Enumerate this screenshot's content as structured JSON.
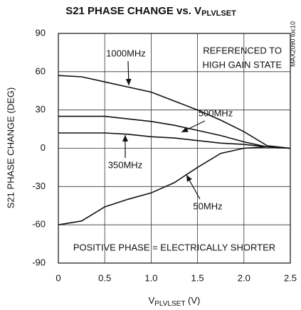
{
  "chart_data": {
    "type": "line",
    "title": "S21 PHASE CHANGE vs. V",
    "title_subscript": "PLVLSET",
    "xlabel": "V",
    "xlabel_subscript": "PLVLSET",
    "xlabel_unit": " (V)",
    "ylabel": "S21 PHASE CHANGE (DEG)",
    "x": [
      0,
      0.25,
      0.5,
      0.75,
      1,
      1.25,
      1.5,
      1.75,
      2,
      2.25,
      2.5
    ],
    "series": [
      {
        "name": "1000MHz",
        "color": "#111111",
        "values": [
          57,
          56,
          52,
          48,
          44,
          37,
          30,
          22,
          13,
          2,
          0
        ]
      },
      {
        "name": "500MHz",
        "color": "#111111",
        "values": [
          25,
          25,
          25,
          23,
          21,
          18,
          14,
          10,
          5,
          1,
          0
        ]
      },
      {
        "name": "350MHz",
        "color": "#111111",
        "values": [
          12,
          12,
          12,
          11,
          9,
          8,
          6,
          4,
          3,
          1,
          0
        ]
      },
      {
        "name": "50MHz",
        "color": "#111111",
        "values": [
          -60,
          -57,
          -46,
          -40,
          -35,
          -27,
          -15,
          -4,
          0,
          1,
          0
        ]
      }
    ],
    "annotations": [
      "REFERENCED TO",
      "HIGH GAIN STATE",
      "POSITIVE PHASE = ELECTRICALLY SHORTER"
    ],
    "side_note": "MAX2090 toc10",
    "xlim": [
      0,
      2.5
    ],
    "xticks": [
      0,
      0.5,
      {
        "value": 1,
        "label": "1.0"
      },
      1.5,
      {
        "value": 2,
        "label": "2.0"
      },
      2.5
    ],
    "ylim": [
      -90,
      90
    ],
    "yticks": [
      -90,
      -60,
      -30,
      0,
      30,
      60,
      90
    ],
    "grid": true
  }
}
